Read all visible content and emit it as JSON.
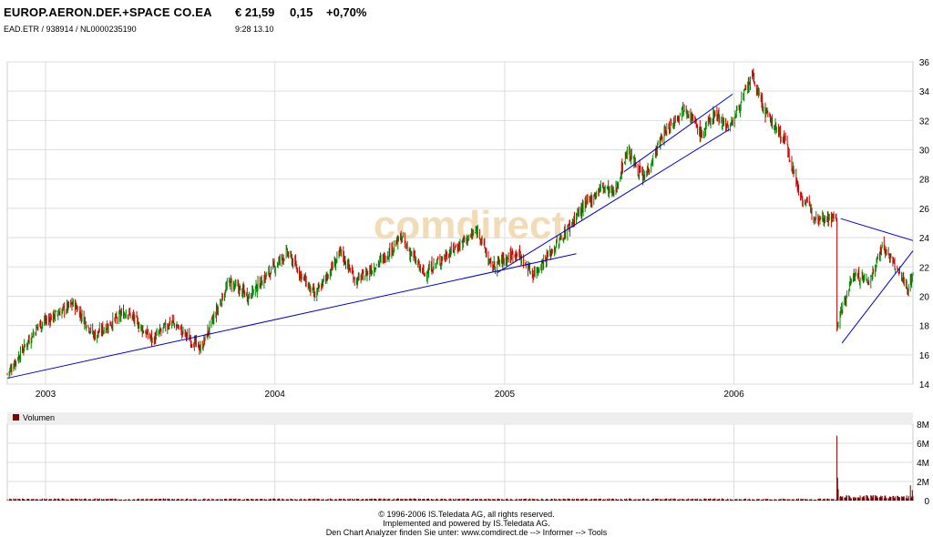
{
  "header": {
    "name": "EUROP.AERON.DEF.+SPACE CO.EA",
    "price": "€ 21,59",
    "change": "0,15",
    "change_pct": "+0,70%",
    "ids": "EAD.ETR  /  938914  /  NL0000235190",
    "time": "9:28    13.10"
  },
  "watermark": "comdirect",
  "volume_label": "Volumen",
  "footer": {
    "line1": "© 1996-2006 IS.Teledata AG, all rights reserved.",
    "line2": "Implemented and powered by IS.Teledata AG.",
    "line3": "Den Chart Analyzer finden Sie unter: www.comdirect.de --> Informer --> Tools"
  },
  "colors": {
    "up": "#008800",
    "down": "#cc0000",
    "trendline": "#0000cc",
    "grid": "#dddddd",
    "volume": "#7a0000",
    "watermark": "#f2dcb8"
  },
  "chart_data": {
    "type": "candlestick",
    "x_range": [
      "2002-11-01",
      "2006-10-13"
    ],
    "x_ticks": [
      {
        "label": "2003",
        "date": "2003-01-01"
      },
      {
        "label": "2004",
        "date": "2004-01-01"
      },
      {
        "label": "2005",
        "date": "2005-01-01"
      },
      {
        "label": "2006",
        "date": "2006-01-01"
      }
    ],
    "ylim": [
      14,
      36
    ],
    "y_ticks": [
      14,
      16,
      18,
      20,
      22,
      24,
      26,
      28,
      30,
      32,
      34,
      36
    ],
    "grid": true,
    "anchors": [
      [
        "2002-11-01",
        14.7
      ],
      [
        "2002-12-20",
        18.0
      ],
      [
        "2003-02-15",
        19.5
      ],
      [
        "2003-03-20",
        17.3
      ],
      [
        "2003-05-10",
        19.0
      ],
      [
        "2003-06-20",
        17.0
      ],
      [
        "2003-07-20",
        18.3
      ],
      [
        "2003-09-05",
        16.4
      ],
      [
        "2003-10-20",
        21.0
      ],
      [
        "2003-11-20",
        20.0
      ],
      [
        "2004-01-20",
        23.0
      ],
      [
        "2004-03-05",
        20.0
      ],
      [
        "2004-04-15",
        23.0
      ],
      [
        "2004-05-10",
        21.0
      ],
      [
        "2004-06-20",
        22.5
      ],
      [
        "2004-07-20",
        24.0
      ],
      [
        "2004-08-25",
        21.5
      ],
      [
        "2004-10-05",
        23.0
      ],
      [
        "2004-11-20",
        24.5
      ],
      [
        "2004-12-10",
        22.0
      ],
      [
        "2005-01-20",
        23.0
      ],
      [
        "2005-02-15",
        21.5
      ],
      [
        "2005-03-25",
        23.5
      ],
      [
        "2005-04-25",
        25.5
      ],
      [
        "2005-06-05",
        27.5
      ],
      [
        "2005-06-25",
        27.0
      ],
      [
        "2005-07-15",
        30.0
      ],
      [
        "2005-08-10",
        28.0
      ],
      [
        "2005-09-10",
        31.0
      ],
      [
        "2005-10-15",
        33.0
      ],
      [
        "2005-11-10",
        31.0
      ],
      [
        "2005-12-01",
        32.5
      ],
      [
        "2005-12-25",
        31.5
      ],
      [
        "2006-01-30",
        35.0
      ],
      [
        "2006-02-20",
        32.5
      ],
      [
        "2006-03-25",
        30.5
      ],
      [
        "2006-04-15",
        27.0
      ],
      [
        "2006-05-10",
        25.5
      ],
      [
        "2006-06-13",
        25.3
      ],
      [
        "2006-06-14",
        18.0
      ],
      [
        "2006-07-10",
        21.5
      ],
      [
        "2006-08-05",
        21.0
      ],
      [
        "2006-08-25",
        23.5
      ],
      [
        "2006-09-15",
        22.0
      ],
      [
        "2006-10-05",
        20.5
      ],
      [
        "2006-10-13",
        21.59
      ]
    ],
    "trendlines": [
      {
        "from": [
          "2002-11-01",
          14.4
        ],
        "to": [
          "2005-04-25",
          22.9
        ]
      },
      {
        "from": [
          "2004-12-20",
          21.6
        ],
        "to": [
          "2005-12-25",
          31.4
        ]
      },
      {
        "from": [
          "2005-07-10",
          28.5
        ],
        "to": [
          "2005-12-30",
          33.8
        ]
      },
      {
        "from": [
          "2006-06-20",
          25.3
        ],
        "to": [
          "2006-10-13",
          23.8
        ]
      },
      {
        "from": [
          "2006-06-22",
          16.8
        ],
        "to": [
          "2006-10-13",
          23.1
        ]
      }
    ],
    "volume": {
      "ylim": [
        0,
        8
      ],
      "unit": "M",
      "y_ticks": [
        {
          "v": 0,
          "label": "0"
        },
        {
          "v": 2,
          "label": "2M"
        },
        {
          "v": 4,
          "label": "4M"
        },
        {
          "v": 6,
          "label": "6M"
        },
        {
          "v": 8,
          "label": "8M"
        }
      ],
      "baseline": 0.15,
      "spikes": [
        [
          "2006-06-14",
          6.8
        ],
        [
          "2006-06-15",
          2.4
        ],
        [
          "2006-06-16",
          1.2
        ],
        [
          "2006-10-09",
          1.6
        ],
        [
          "2006-10-12",
          1.1
        ]
      ]
    }
  }
}
